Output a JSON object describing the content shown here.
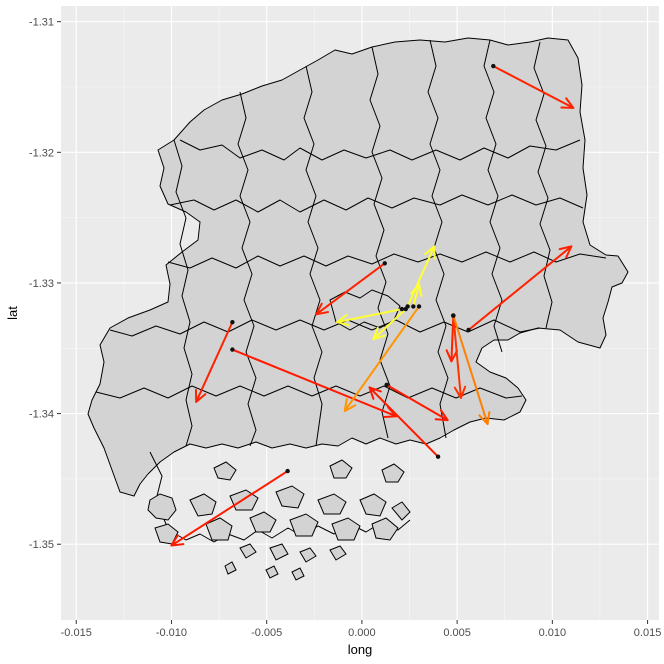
{
  "chart_data": {
    "type": "map",
    "xlabel": "long",
    "ylabel": "lat",
    "xlim": [
      -0.0158,
      0.0156
    ],
    "ylim": [
      -1.3558,
      -1.3088
    ],
    "x_ticks": [
      -0.015,
      -0.01,
      -0.005,
      0.0,
      0.005,
      0.01,
      0.015
    ],
    "x_tick_labels": [
      "-0.015",
      "-0.010",
      "-0.005",
      "0.000",
      "0.005",
      "0.010",
      "0.015"
    ],
    "y_ticks": [
      -1.35,
      -1.34,
      -1.33,
      -1.32,
      -1.31
    ],
    "y_tick_labels": [
      "-1.35",
      "-1.34",
      "-1.33",
      "-1.32",
      "-1.31"
    ],
    "grid": true,
    "panel_color": "#ebebeb",
    "region_fill": "#d3d3d3",
    "region_outline": "#000000",
    "arrows": [
      {
        "from": [
          0.0069,
          -1.3134
        ],
        "to": [
          0.0111,
          -1.3166
        ],
        "color": "#ff2200"
      },
      {
        "from": [
          0.0056,
          -1.3336
        ],
        "to": [
          0.011,
          -1.3272
        ],
        "color": "#ff2200"
      },
      {
        "from": [
          0.0012,
          -1.3285
        ],
        "to": [
          -0.0024,
          -1.3324
        ],
        "color": "#ff2200"
      },
      {
        "from": [
          -0.0068,
          -1.333
        ],
        "to": [
          -0.0087,
          -1.3391
        ],
        "color": "#ff2200"
      },
      {
        "from": [
          -0.0068,
          -1.3351
        ],
        "to": [
          0.0018,
          -1.3402
        ],
        "color": "#ff1a00"
      },
      {
        "from": [
          0.0013,
          -1.3378
        ],
        "to": [
          0.0045,
          -1.3405
        ],
        "color": "#ff1a00"
      },
      {
        "from": [
          0.004,
          -1.3433
        ],
        "to": [
          0.0004,
          -1.338
        ],
        "color": "#ff1a00"
      },
      {
        "from": [
          -0.0039,
          -1.3444
        ],
        "to": [
          -0.01,
          -1.3501
        ],
        "color": "#ff1a00"
      },
      {
        "from": [
          0.0048,
          -1.3325
        ],
        "to": [
          0.0047,
          -1.336
        ],
        "color": "#ff2200"
      },
      {
        "from": [
          0.0048,
          -1.3325
        ],
        "to": [
          0.0052,
          -1.3388
        ],
        "color": "#ff3300"
      },
      {
        "from": [
          0.0048,
          -1.3325
        ],
        "to": [
          0.0066,
          -1.3408
        ],
        "color": "#ff7f00"
      },
      {
        "from": [
          0.003,
          -1.3318
        ],
        "to": [
          -0.0009,
          -1.3398
        ],
        "color": "#ff9500"
      },
      {
        "from": [
          0.0024,
          -1.3318
        ],
        "to": [
          0.0038,
          -1.3272
        ],
        "color": "#ffff33"
      },
      {
        "from": [
          0.0021,
          -1.332
        ],
        "to": [
          -0.0013,
          -1.333
        ],
        "color": "#ffff33"
      },
      {
        "from": [
          0.0023,
          -1.332
        ],
        "to": [
          0.0006,
          -1.3343
        ],
        "color": "#ffff33"
      },
      {
        "from": [
          0.0027,
          -1.3318
        ],
        "to": [
          0.003,
          -1.3301
        ],
        "color": "#ffff33"
      }
    ]
  }
}
